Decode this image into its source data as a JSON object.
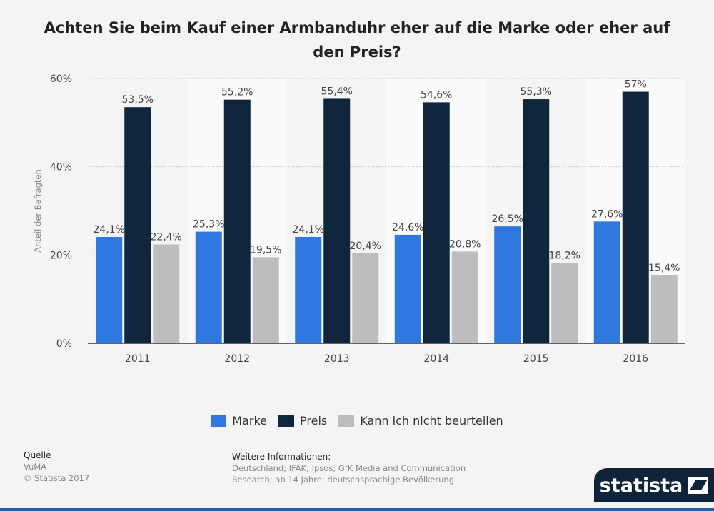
{
  "title": "Achten Sie beim Kauf einer Armbanduhr eher auf die Marke oder eher auf den Preis?",
  "chart_data": {
    "type": "bar",
    "categories": [
      "2011",
      "2012",
      "2013",
      "2014",
      "2015",
      "2016"
    ],
    "series": [
      {
        "name": "Marke",
        "values": [
          24.1,
          25.3,
          24.1,
          24.6,
          26.5,
          27.6
        ],
        "labels": [
          "24,1%",
          "25,3%",
          "24,1%",
          "24,6%",
          "26,5%",
          "27,6%"
        ],
        "color": "#2f78e0"
      },
      {
        "name": "Preis",
        "values": [
          53.5,
          55.2,
          55.4,
          54.6,
          55.3,
          57.0
        ],
        "labels": [
          "53,5%",
          "55,2%",
          "55,4%",
          "54,6%",
          "55,3%",
          "57%"
        ],
        "color": "#10263c"
      },
      {
        "name": "Kann ich nicht beurteilen",
        "values": [
          22.4,
          19.5,
          20.4,
          20.8,
          18.2,
          15.4
        ],
        "labels": [
          "22,4%",
          "19,5%",
          "20,4%",
          "20,8%",
          "18,2%",
          "15,4%"
        ],
        "color": "#bdbdbd"
      }
    ],
    "ylabel": "Anteil der Befragten",
    "ylim": [
      0,
      60
    ],
    "yticks": [
      0,
      20,
      40,
      60
    ],
    "ytick_labels": [
      "0%",
      "20%",
      "40%",
      "60%"
    ],
    "grid": true,
    "legend_position": "bottom"
  },
  "legend": {
    "items": [
      {
        "label": "Marke",
        "color": "#2f78e0"
      },
      {
        "label": "Preis",
        "color": "#10263c"
      },
      {
        "label": "Kann ich nicht beurteilen",
        "color": "#bdbdbd"
      }
    ]
  },
  "source": {
    "heading": "Quelle",
    "line1": "VuMA",
    "line2": "© Statista 2017"
  },
  "info": {
    "heading": "Weitere Informationen:",
    "line1": "Deutschland; IFAK; Ipsos; GfK Media and Communication",
    "line2": "Research; ab 14 Jahre; deutschsprachige Bevölkerung"
  },
  "brand": {
    "name": "statista"
  }
}
